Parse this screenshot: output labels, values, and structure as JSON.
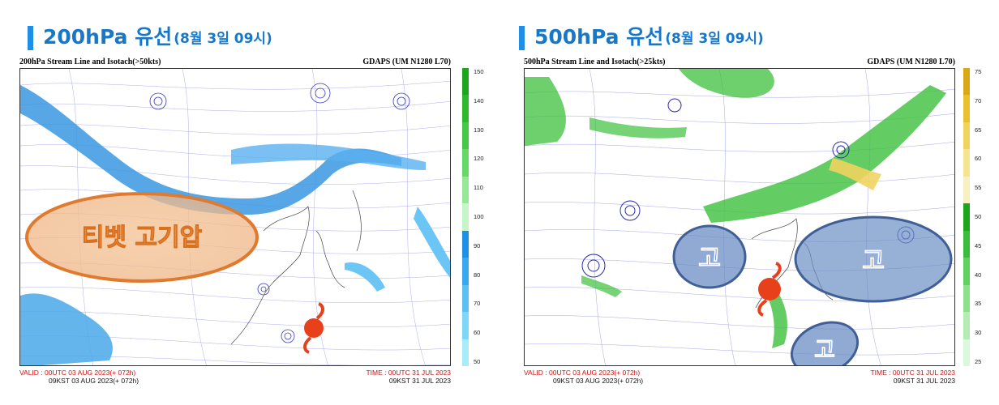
{
  "left": {
    "heading_main": "200hPa 유선",
    "heading_sub": "(8월 3일 09시)",
    "map_title": "200hPa Stream Line and Isotach(>50kts)",
    "model": "GDAPS (UM N1280 L70)",
    "valid": "VALID : 00UTC 03 AUG 2023(+ 072h)",
    "kst": "09KST 03 AUG 2023(+ 072h)",
    "time": "TIME : 00UTC 31 JUL 2023",
    "time_kst": "09KST 31 JUL 2023",
    "annotation": "티벳 고기압",
    "colorbar_labels": [
      "150",
      "140",
      "130",
      "120",
      "110",
      "100",
      "90",
      "80",
      "70",
      "60",
      "50"
    ],
    "colorbar_colors": [
      "#1ea51e",
      "#2eb82e",
      "#45c845",
      "#66d866",
      "#96e896",
      "#c8f5c8",
      "#1e90e6",
      "#3aa8f0",
      "#5cc0f4",
      "#7fd6f8",
      "#a8ecfc"
    ],
    "jet_color": "#2f8fe0",
    "annotation_color": "#e07a2e"
  },
  "right": {
    "heading_main": "500hPa 유선",
    "heading_sub": "(8월 3일 09시)",
    "map_title": "500hPa Stream Line and Isotach(>25kts)",
    "model": "GDAPS (UM N1280 L70)",
    "valid": "VALID : 00UTC 03 AUG 2023(+ 072h)",
    "kst": "09KST 03 AUG 2023(+ 072h)",
    "time": "TIME : 00UTC 31 JUL 2023",
    "time_kst": "09KST 31 JUL 2023",
    "high_labels": [
      "고",
      "고",
      "고"
    ],
    "colorbar_labels": [
      "75",
      "70",
      "65",
      "60",
      "55",
      "50",
      "45",
      "40",
      "35",
      "30",
      "25"
    ],
    "colorbar_colors": [
      "#d8a818",
      "#e8c030",
      "#f0d460",
      "#f4e490",
      "#f8f0c0",
      "#1ea51e",
      "#3cbc3c",
      "#60d060",
      "#8ce08c",
      "#b4ecb4",
      "#dcf8dc"
    ],
    "jet_color": "#3cc03c",
    "high_color": "#4a6ea8"
  },
  "icons": {
    "typhoon": "typhoon-symbol-icon"
  }
}
